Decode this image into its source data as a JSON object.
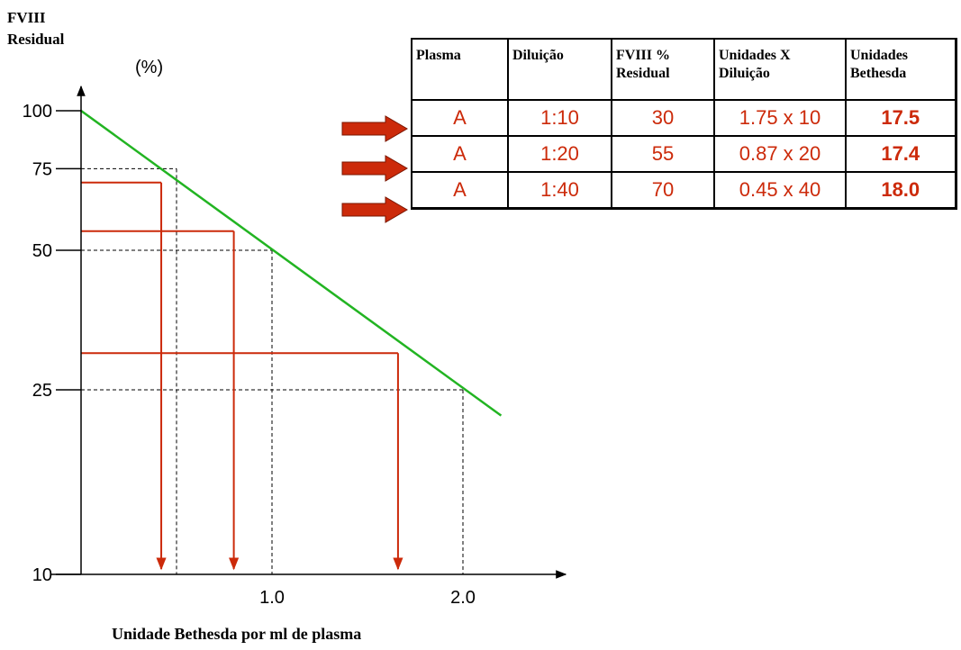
{
  "chart_data": {
    "type": "line",
    "ylabel": "FVIII Residual",
    "y_unit": "(%)",
    "xlabel": "Unidade Bethesda por ml de plasma",
    "y_scale": "log",
    "y_ticks": [
      "100",
      "75",
      "50",
      "25",
      "10"
    ],
    "x_ticks": [
      "1.0",
      "2.0"
    ],
    "series": [
      {
        "x": [
          0,
          2.2
        ],
        "y": [
          100,
          22
        ],
        "color": "#22b422"
      }
    ],
    "reference_lines": [
      {
        "x": 0.5,
        "y": 75
      },
      {
        "x": 1.0,
        "y": 50
      },
      {
        "x": 2.0,
        "y": 25
      }
    ],
    "readings": [
      {
        "x": 0.42,
        "y": 70
      },
      {
        "x": 0.8,
        "y": 55
      },
      {
        "x": 1.66,
        "y": 30
      }
    ],
    "colors": {
      "line": "#22b422",
      "reading": "#cc2a0a",
      "reference": "#000000",
      "arrow": "#cc2a0a"
    }
  },
  "table": {
    "headers": [
      "Plasma",
      "Diluição",
      "FVIII % Residual",
      "Unidades X Diluição",
      "Unidades Bethesda"
    ],
    "rows": [
      [
        "A",
        "1:10",
        "30",
        "1.75 x 10",
        "17.5"
      ],
      [
        "A",
        "1:20",
        "55",
        "0.87 x 20",
        "17.4"
      ],
      [
        "A",
        "1:40",
        "70",
        "0.45 x 40",
        "18.0"
      ]
    ]
  }
}
